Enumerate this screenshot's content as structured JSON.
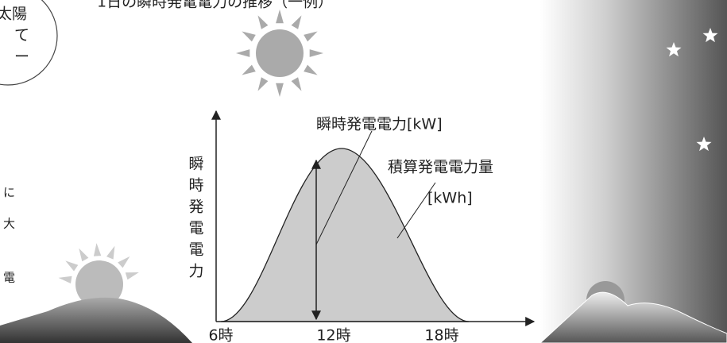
{
  "title": "1日の瞬時発電電力の推移（一例）",
  "bubble": [
    "太陽",
    "て",
    "ー"
  ],
  "side_text": [
    "に",
    "大",
    "電"
  ],
  "diagram": {
    "y_axis_label": "瞬時発電電力",
    "power_label": "瞬時発電電力[kW]",
    "energy_label": [
      "積算発電電力量",
      "[kWh]"
    ],
    "x_labels": [
      "6時",
      "12時",
      "18時"
    ]
  }
}
